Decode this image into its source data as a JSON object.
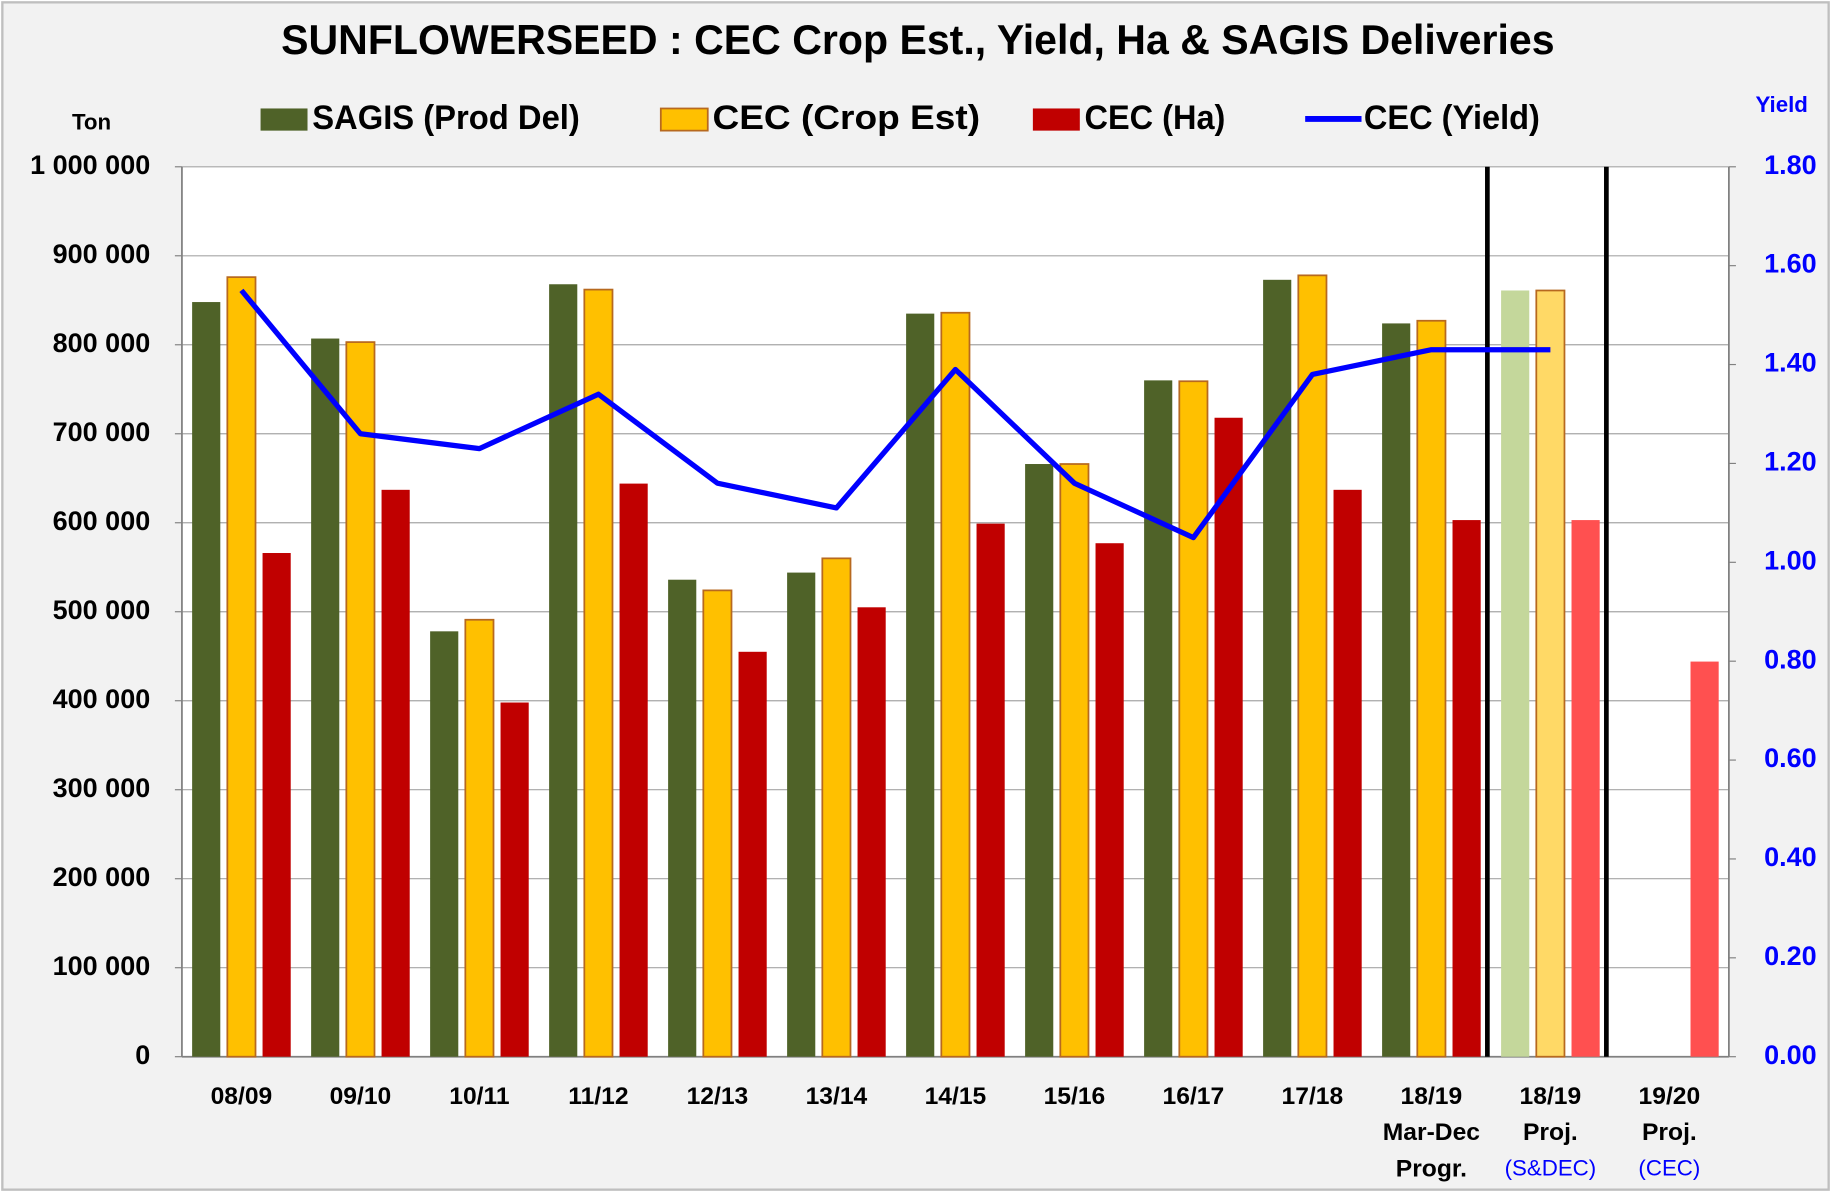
{
  "chart_data": {
    "type": "bar",
    "title": "SUNFLOWERSEED : CEC  Crop Est., Yield, Ha & SAGIS Deliveries",
    "y_label": "Ton",
    "y2_label": "Yield",
    "y2_color": "#0000ff",
    "categories": [
      [
        "08/09"
      ],
      [
        "09/10"
      ],
      [
        "10/11"
      ],
      [
        "11/12"
      ],
      [
        "12/13"
      ],
      [
        "13/14"
      ],
      [
        "14/15"
      ],
      [
        "15/16"
      ],
      [
        "16/17"
      ],
      [
        "17/18"
      ],
      [
        "18/19",
        "Mar-Dec",
        "Progr."
      ],
      [
        "18/19",
        "Proj."
      ],
      [
        "19/20",
        "Proj."
      ]
    ],
    "category_notes": [
      null,
      null,
      null,
      null,
      null,
      null,
      null,
      null,
      null,
      null,
      null,
      "(S&DEC)",
      "(CEC)"
    ],
    "category_note_color": "#0000ff",
    "series": [
      {
        "name": "SAGIS (Prod Del)",
        "color": "#4f6228",
        "colors": [
          "#4f6228",
          "#4f6228",
          "#4f6228",
          "#4f6228",
          "#4f6228",
          "#4f6228",
          "#4f6228",
          "#4f6228",
          "#4f6228",
          "#4f6228",
          "#4f6228",
          "#c4d79b",
          "#4f6228"
        ],
        "values": [
          848000,
          807000,
          478000,
          868000,
          536000,
          544000,
          835000,
          666000,
          760000,
          873000,
          824000,
          861000,
          null
        ]
      },
      {
        "name": "CEC (Crop Est)",
        "color": "#ffc000",
        "colors": [
          "#ffc000",
          "#ffc000",
          "#ffc000",
          "#ffc000",
          "#ffc000",
          "#ffc000",
          "#ffc000",
          "#ffc000",
          "#ffc000",
          "#ffc000",
          "#ffc000",
          "#ffd966",
          "#ffc000"
        ],
        "values": [
          876000,
          803000,
          491000,
          862000,
          524000,
          560000,
          836000,
          666000,
          759000,
          878000,
          827000,
          861000,
          null
        ]
      },
      {
        "name": "CEC (Ha)",
        "color": "#c00000",
        "colors": [
          "#c00000",
          "#c00000",
          "#c00000",
          "#c00000",
          "#c00000",
          "#c00000",
          "#c00000",
          "#c00000",
          "#c00000",
          "#c00000",
          "#c00000",
          "#ff5050",
          "#ff5050"
        ],
        "values": [
          566000,
          637000,
          398000,
          644000,
          455000,
          505000,
          599000,
          577000,
          718000,
          637000,
          603000,
          603000,
          444000
        ]
      },
      {
        "name": "CEC (Yield)",
        "color": "#0000ff",
        "type": "line",
        "axis": "y2",
        "values": [
          1.55,
          1.26,
          1.23,
          1.34,
          1.16,
          1.11,
          1.39,
          1.16,
          1.05,
          1.38,
          1.43,
          1.43,
          null
        ]
      }
    ],
    "ylim": [
      0,
      1000000
    ],
    "yticks": [
      0,
      {
        "value": 100000,
        "label": "100 000"
      },
      {
        "value": 200000,
        "label": "200 000"
      },
      {
        "value": 300000,
        "label": "300 000"
      },
      {
        "value": 400000,
        "label": "400 000"
      },
      {
        "value": 500000,
        "label": "500 000"
      },
      {
        "value": 600000,
        "label": "600 000"
      },
      {
        "value": 700000,
        "label": "700 000"
      },
      {
        "value": 800000,
        "label": "800 000"
      },
      {
        "value": 900000,
        "label": "900 000"
      },
      {
        "value": 1000000,
        "label": "1 000 000"
      }
    ],
    "y2lim": [
      0,
      1.8
    ],
    "y2ticks": [
      {
        "value": 0,
        "label": "0.00"
      },
      {
        "value": 0.2,
        "label": "0.20"
      },
      {
        "value": 0.4,
        "label": "0.40"
      },
      {
        "value": 0.6,
        "label": "0.60"
      },
      {
        "value": 0.8,
        "label": "0.80"
      },
      {
        "value": 1,
        "label": "1.00"
      },
      {
        "value": 1.2,
        "label": "1.20"
      },
      {
        "value": 1.4,
        "label": "1.40"
      },
      {
        "value": 1.6,
        "label": "1.60"
      },
      {
        "value": 1.8,
        "label": "1.80"
      }
    ],
    "grid": true,
    "legend": "top"
  }
}
